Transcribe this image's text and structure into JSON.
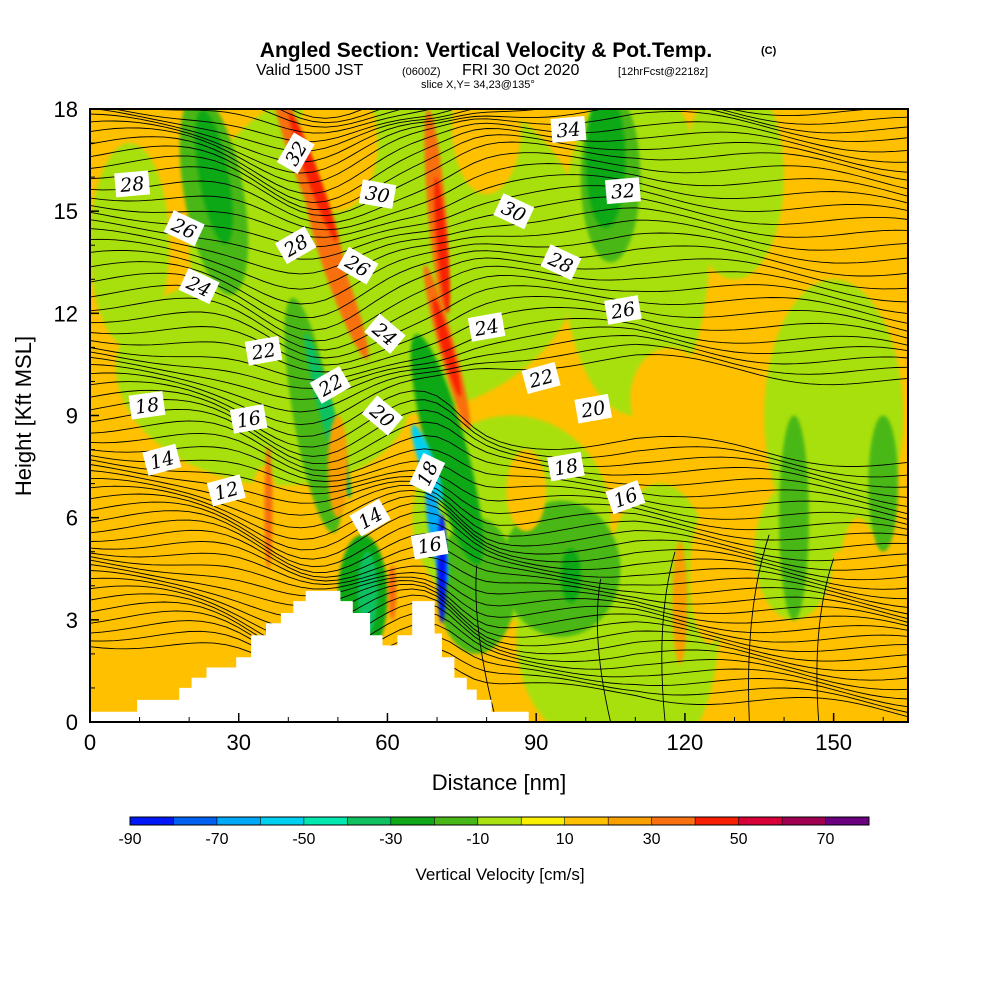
{
  "header": {
    "title": "Angled Section: Vertical Velocity & Pot.Temp.",
    "title_mark": "(C)",
    "valid_prefix": "Valid 1500 JST",
    "valid_zulu": "(0600Z)",
    "valid_date": "FRI 30 Oct 2020",
    "forecast": "[12hrFcst@2218z]",
    "slice": "slice X,Y= 34,23@135°"
  },
  "colors": {
    "terrain": "#ffffff",
    "contour": "#000000",
    "frame": "#000000",
    "background_field": "#ffc000"
  },
  "chart_data": {
    "type": "heatmap",
    "title": "Angled Section: Vertical Velocity & Pot.Temp.",
    "xlabel": "Distance [nm]",
    "ylabel": "Height [Kft MSL]",
    "xlim": [
      0,
      165
    ],
    "ylim": [
      0,
      18
    ],
    "x_ticks": [
      0,
      30,
      60,
      90,
      120,
      150
    ],
    "y_ticks": [
      0,
      3,
      6,
      9,
      12,
      15,
      18
    ],
    "colorbar": {
      "title": "Vertical Velocity [cm/s]",
      "labels": [
        "-90",
        "-70",
        "-50",
        "-30",
        "-10",
        "10",
        "30",
        "50",
        "70"
      ],
      "bounds": [
        -90,
        -80,
        -70,
        -60,
        -50,
        -40,
        -30,
        -20,
        -10,
        0,
        10,
        20,
        30,
        40,
        50,
        60,
        70
      ],
      "colors": [
        "#0018f8",
        "#0060f0",
        "#00a8f8",
        "#00d0f0",
        "#00e8b0",
        "#10c060",
        "#10a818",
        "#48b818",
        "#a8e010",
        "#f8f000",
        "#ffc000",
        "#f8a000",
        "#f87010",
        "#f82000",
        "#d80038",
        "#a00050",
        "#6a0080"
      ]
    },
    "terrain_profile": [
      [
        0,
        0.3
      ],
      [
        9.5,
        0.3
      ],
      [
        9.5,
        0.65
      ],
      [
        18,
        0.65
      ],
      [
        18,
        1.0
      ],
      [
        20.5,
        1.0
      ],
      [
        20.5,
        1.3
      ],
      [
        23.5,
        1.3
      ],
      [
        23.5,
        1.6
      ],
      [
        29.5,
        1.6
      ],
      [
        29.5,
        1.9
      ],
      [
        32.5,
        1.9
      ],
      [
        32.5,
        2.55
      ],
      [
        35.5,
        2.55
      ],
      [
        35.5,
        2.9
      ],
      [
        38.5,
        2.9
      ],
      [
        38.5,
        3.2
      ],
      [
        41,
        3.2
      ],
      [
        41,
        3.55
      ],
      [
        43.5,
        3.55
      ],
      [
        43.5,
        3.85
      ],
      [
        46.5,
        3.85
      ],
      [
        46.5,
        3.85
      ],
      [
        50.5,
        3.85
      ],
      [
        50.5,
        3.55
      ],
      [
        53,
        3.55
      ],
      [
        53,
        3.2
      ],
      [
        56.5,
        3.2
      ],
      [
        56.5,
        2.55
      ],
      [
        59,
        2.55
      ],
      [
        59,
        2.25
      ],
      [
        62,
        2.25
      ],
      [
        62,
        2.55
      ],
      [
        65,
        2.55
      ],
      [
        65,
        3.55
      ],
      [
        69.5,
        3.55
      ],
      [
        69.5,
        2.6
      ],
      [
        71,
        2.6
      ],
      [
        71,
        1.9
      ],
      [
        73.5,
        1.9
      ],
      [
        73.5,
        1.3
      ],
      [
        76,
        1.3
      ],
      [
        76,
        0.95
      ],
      [
        78,
        0.95
      ],
      [
        78,
        0.65
      ],
      [
        81,
        0.65
      ],
      [
        81,
        0.3
      ],
      [
        88.5,
        0.3
      ],
      [
        88.5,
        0
      ],
      [
        0,
        0
      ]
    ],
    "theta_contours": [
      {
        "value": 12,
        "label": "12",
        "at": [
          27.5,
          6.8
        ],
        "rot": -15
      },
      {
        "value": 14,
        "label": "14",
        "at": [
          14.5,
          7.7
        ],
        "rot": -15,
        "label2": "14",
        "at2": [
          56.5,
          6.0
        ],
        "rot2": -30
      },
      {
        "value": 16,
        "label": "16",
        "at": [
          32,
          8.9
        ],
        "rot": -10,
        "label2": "16",
        "at2": [
          68.5,
          5.2
        ],
        "rot2": -10,
        "label3": "16",
        "at3": [
          108,
          6.6
        ],
        "rot3": -20
      },
      {
        "value": 18,
        "label": "18",
        "at": [
          11.5,
          9.3
        ],
        "rot": -8,
        "label2": "18",
        "at2": [
          68,
          7.3
        ],
        "rot2": -65,
        "label3": "18",
        "at3": [
          96,
          7.5
        ],
        "rot3": -10
      },
      {
        "value": 20,
        "label": "20",
        "at": [
          59,
          9.0
        ],
        "rot": 40,
        "label2": "20",
        "at2": [
          101.5,
          9.2
        ],
        "rot2": -10
      },
      {
        "value": 22,
        "label": "22",
        "at": [
          35,
          10.9
        ],
        "rot": -10,
        "label2": "22",
        "at2": [
          48.5,
          9.9
        ],
        "rot2": -30,
        "label3": "22",
        "at3": [
          91,
          10.1
        ],
        "rot3": -15
      },
      {
        "value": 24,
        "label": "24",
        "at": [
          22,
          12.8
        ],
        "rot": 25,
        "label2": "24",
        "at2": [
          59.5,
          11.4
        ],
        "rot2": 40,
        "label3": "24",
        "at3": [
          80,
          11.6
        ],
        "rot3": -10
      },
      {
        "value": 26,
        "label": "26",
        "at": [
          19,
          14.5
        ],
        "rot": 25,
        "label2": "26",
        "at2": [
          54,
          13.4
        ],
        "rot2": 30,
        "label3": "26",
        "at3": [
          107.5,
          12.1
        ],
        "rot3": -10
      },
      {
        "value": 28,
        "label": "28",
        "at": [
          8.5,
          15.8
        ],
        "rot": -5,
        "label2": "28",
        "at2": [
          41.5,
          14.0
        ],
        "rot2": -30,
        "label3": "28",
        "at3": [
          95,
          13.5
        ],
        "rot3": 25
      },
      {
        "value": 30,
        "label": "30",
        "at": [
          58,
          15.5
        ],
        "rot": 10,
        "label2": "30",
        "at2": [
          85.5,
          15.0
        ],
        "rot2": 25
      },
      {
        "value": 32,
        "label": "32",
        "at": [
          41.5,
          16.7
        ],
        "rot": -60,
        "label2": "32",
        "at2": [
          107.5,
          15.6
        ],
        "rot2": -5
      },
      {
        "value": 34,
        "label": "34",
        "at": [
          96.5,
          17.4
        ],
        "rot": -5
      }
    ],
    "grid": false
  }
}
